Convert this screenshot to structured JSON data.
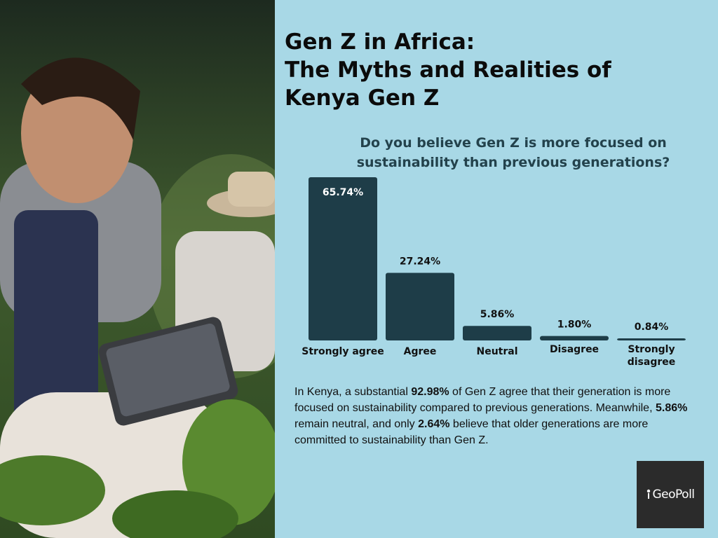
{
  "title": {
    "line1": "Gen Z in Africa:",
    "line2": "The Myths and Realities of",
    "line3": "Kenya Gen Z"
  },
  "question": "Do you believe Gen Z is more focused on sustainability than previous generations?",
  "chart_data": {
    "type": "bar",
    "title": "Do you believe Gen Z is more focused on sustainability than previous generations?",
    "categories": [
      "Strongly agree",
      "Agree",
      "Neutral",
      "Disagree",
      "Strongly disagree"
    ],
    "values": [
      65.74,
      27.24,
      5.86,
      1.8,
      0.84
    ],
    "value_labels": [
      "65.74%",
      "27.24%",
      "5.86%",
      "1.80%",
      "0.84%"
    ],
    "ylim": [
      0,
      65.74
    ],
    "grid": false,
    "bar_color": "#1e3d48",
    "xlabel": "",
    "ylabel": ""
  },
  "summary": {
    "p1": "In Kenya, a substantial ",
    "b1": "92.98%",
    "p2": " of Gen Z agree that their generation is more focused on sustainability compared to previous generations. Meanwhile, ",
    "b2": "5.86%",
    "p3": " remain neutral, and only ",
    "b3": "2.64%",
    "p4": " believe that older generations are more committed to sustainability than Gen Z."
  },
  "logo": {
    "text": "GeoPoll"
  },
  "colors": {
    "panel_bg": "#a8d8e6",
    "bar": "#1e3d48",
    "logo_bg": "#2b2b2b"
  }
}
